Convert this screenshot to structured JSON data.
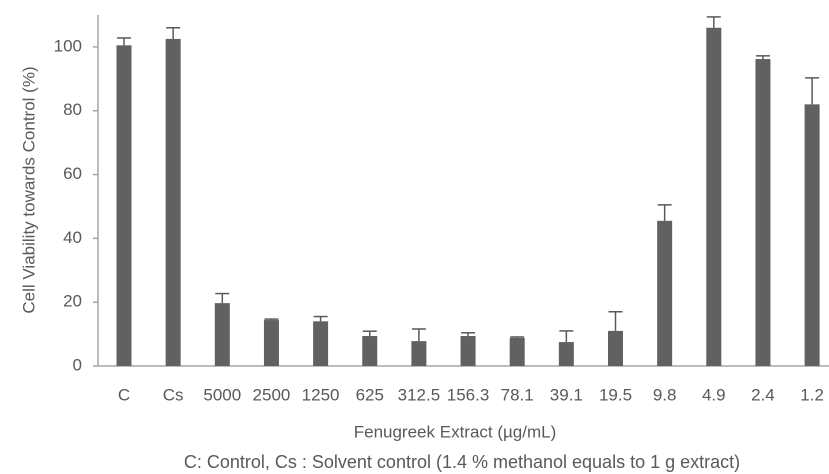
{
  "chart_data": {
    "type": "bar",
    "categories": [
      "C",
      "Cs",
      "5000",
      "2500",
      "1250",
      "625",
      "312.5",
      "156.3",
      "78.1",
      "39.1",
      "19.5",
      "9.8",
      "4.9",
      "2.4",
      "1.2"
    ],
    "values": [
      100.5,
      102.5,
      19.7,
      14.4,
      14,
      9.4,
      7.8,
      9.4,
      8.8,
      7.5,
      11,
      45.5,
      106,
      96.2,
      82
    ],
    "errors": [
      2.3,
      3.5,
      3,
      0.3,
      1.5,
      1.5,
      3.8,
      1,
      0.3,
      3.5,
      6,
      5,
      3.4,
      1,
      8.3
    ],
    "color": "#616161",
    "ylim": [
      0,
      110
    ],
    "yticks": [
      0,
      20,
      40,
      60,
      80,
      100
    ],
    "y_label": "Cell Viability towards Control (%)",
    "x_label": "Fenugreek Extract (µg/mL)",
    "annotation": "C: Control, Cs : Solvent control (1.4 % methanol equals to 1 g extract)",
    "grid": false
  }
}
